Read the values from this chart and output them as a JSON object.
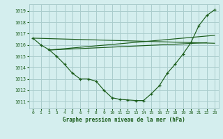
{
  "background_color": "#d4eeee",
  "grid_color": "#aacccc",
  "line_color": "#1a5c1a",
  "title": "Graphe pression niveau de la mer (hPa)",
  "xlim": [
    -0.5,
    23.5
  ],
  "ylim": [
    1010.4,
    1019.6
  ],
  "yticks": [
    1011,
    1012,
    1013,
    1014,
    1015,
    1016,
    1017,
    1018,
    1019
  ],
  "xticks": [
    0,
    1,
    2,
    3,
    4,
    5,
    6,
    7,
    8,
    9,
    10,
    11,
    12,
    13,
    14,
    15,
    16,
    17,
    18,
    19,
    20,
    21,
    22,
    23
  ],
  "main_line_x": [
    0,
    1,
    2,
    3,
    4,
    5,
    6,
    7,
    8,
    9,
    10,
    11,
    12,
    13,
    14,
    15,
    16,
    17,
    18,
    19,
    20,
    21,
    22,
    23
  ],
  "main_line_y": [
    1016.6,
    1016.0,
    1015.6,
    1015.0,
    1014.3,
    1013.5,
    1013.0,
    1013.0,
    1012.8,
    1012.0,
    1011.35,
    1011.2,
    1011.15,
    1011.1,
    1011.1,
    1011.7,
    1012.4,
    1013.5,
    1014.3,
    1015.2,
    1016.2,
    1017.7,
    1018.6,
    1019.1
  ],
  "ref_line1_x": [
    0,
    23
  ],
  "ref_line1_y": [
    1016.6,
    1016.15
  ],
  "ref_line2_x": [
    2,
    23
  ],
  "ref_line2_y": [
    1015.55,
    1016.85
  ],
  "ref_line3_x": [
    2,
    22
  ],
  "ref_line3_y": [
    1015.55,
    1016.2
  ]
}
